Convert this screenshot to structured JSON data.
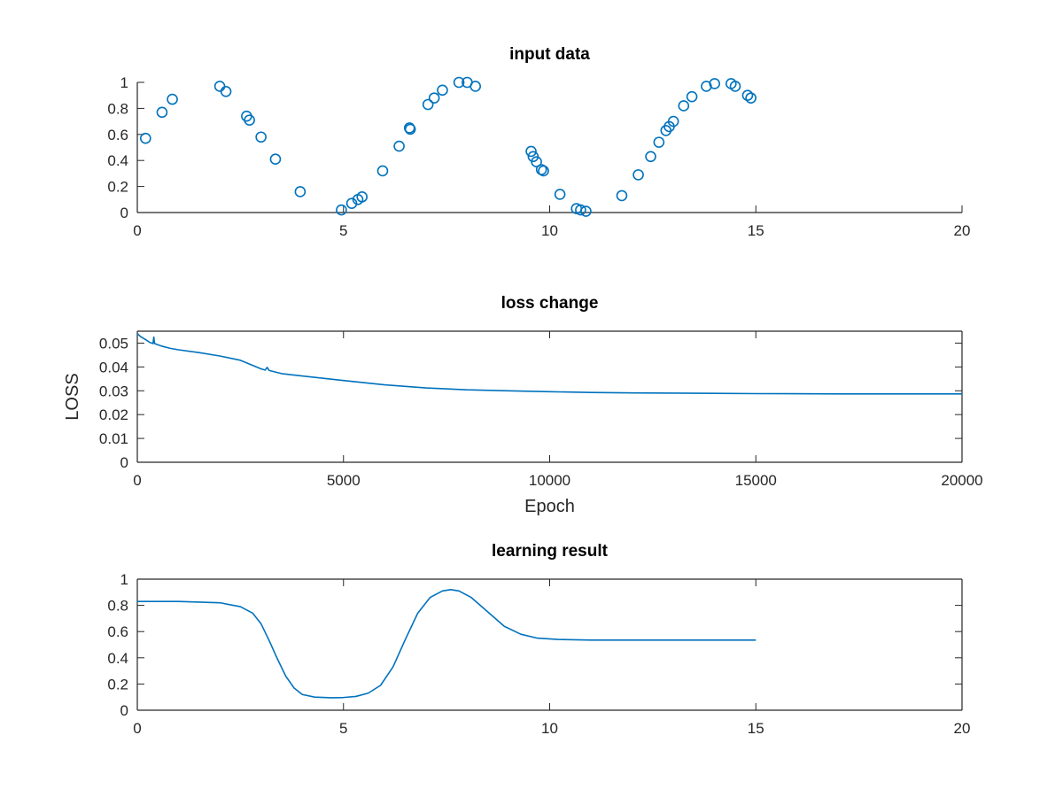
{
  "chart_data": [
    {
      "type": "scatter",
      "title": "input data",
      "xlabel": "",
      "ylabel": "",
      "xlim": [
        0,
        20
      ],
      "ylim": [
        0,
        1
      ],
      "xticks": [
        0,
        5,
        10,
        15,
        20
      ],
      "yticks": [
        0,
        0.2,
        0.4,
        0.6,
        0.8,
        1
      ],
      "marker": "circle-open",
      "series_color": "#0072BD",
      "points": [
        [
          0.2,
          0.57
        ],
        [
          0.6,
          0.77
        ],
        [
          0.85,
          0.87
        ],
        [
          2.0,
          0.97
        ],
        [
          2.15,
          0.93
        ],
        [
          2.65,
          0.74
        ],
        [
          2.72,
          0.71
        ],
        [
          3.0,
          0.58
        ],
        [
          3.35,
          0.41
        ],
        [
          3.95,
          0.16
        ],
        [
          4.95,
          0.02
        ],
        [
          5.2,
          0.07
        ],
        [
          5.35,
          0.1
        ],
        [
          5.45,
          0.12
        ],
        [
          5.95,
          0.32
        ],
        [
          6.35,
          0.51
        ],
        [
          6.6,
          0.65
        ],
        [
          6.62,
          0.64
        ],
        [
          7.05,
          0.83
        ],
        [
          7.2,
          0.88
        ],
        [
          7.4,
          0.94
        ],
        [
          7.8,
          1.0
        ],
        [
          8.0,
          1.0
        ],
        [
          8.2,
          0.97
        ],
        [
          9.55,
          0.47
        ],
        [
          9.6,
          0.43
        ],
        [
          9.68,
          0.39
        ],
        [
          9.8,
          0.33
        ],
        [
          9.85,
          0.32
        ],
        [
          10.25,
          0.14
        ],
        [
          10.65,
          0.03
        ],
        [
          10.75,
          0.02
        ],
        [
          10.88,
          0.01
        ],
        [
          11.75,
          0.13
        ],
        [
          12.15,
          0.29
        ],
        [
          12.45,
          0.43
        ],
        [
          12.65,
          0.54
        ],
        [
          12.82,
          0.63
        ],
        [
          12.9,
          0.66
        ],
        [
          13.0,
          0.7
        ],
        [
          13.25,
          0.82
        ],
        [
          13.45,
          0.89
        ],
        [
          13.8,
          0.97
        ],
        [
          14.0,
          0.99
        ],
        [
          14.4,
          0.99
        ],
        [
          14.5,
          0.97
        ],
        [
          14.8,
          0.9
        ],
        [
          14.88,
          0.88
        ]
      ]
    },
    {
      "type": "line",
      "title": "loss change",
      "xlabel": "Epoch",
      "ylabel": "LOSS",
      "xlim": [
        0,
        20000
      ],
      "ylim": [
        0,
        0.055
      ],
      "xticks": [
        0,
        5000,
        10000,
        15000,
        20000
      ],
      "yticks": [
        0,
        0.01,
        0.02,
        0.03,
        0.04,
        0.05
      ],
      "series_color": "#0072BD",
      "points": [
        [
          0,
          0.054
        ],
        [
          50,
          0.0532
        ],
        [
          100,
          0.0525
        ],
        [
          200,
          0.0515
        ],
        [
          300,
          0.0503
        ],
        [
          380,
          0.0498
        ],
        [
          400,
          0.0525
        ],
        [
          420,
          0.0498
        ],
        [
          600,
          0.0487
        ],
        [
          800,
          0.0478
        ],
        [
          1000,
          0.0472
        ],
        [
          1500,
          0.046
        ],
        [
          2000,
          0.0446
        ],
        [
          2500,
          0.0428
        ],
        [
          3000,
          0.0392
        ],
        [
          3100,
          0.0387
        ],
        [
          3150,
          0.0398
        ],
        [
          3200,
          0.0385
        ],
        [
          3500,
          0.0372
        ],
        [
          4000,
          0.0362
        ],
        [
          5000,
          0.0343
        ],
        [
          6000,
          0.0325
        ],
        [
          7000,
          0.0312
        ],
        [
          8000,
          0.0304
        ],
        [
          9000,
          0.03
        ],
        [
          10000,
          0.0296
        ],
        [
          11000,
          0.0293
        ],
        [
          12000,
          0.0291
        ],
        [
          13000,
          0.029
        ],
        [
          14000,
          0.0289
        ],
        [
          15000,
          0.0288
        ],
        [
          17000,
          0.0287
        ],
        [
          20000,
          0.0287
        ]
      ]
    },
    {
      "type": "line",
      "title": "learning result",
      "xlabel": "",
      "ylabel": "",
      "xlim": [
        0,
        20
      ],
      "ylim": [
        0,
        1
      ],
      "xticks": [
        0,
        5,
        10,
        15,
        20
      ],
      "yticks": [
        0,
        0.2,
        0.4,
        0.6,
        0.8,
        1
      ],
      "series_color": "#0072BD",
      "points": [
        [
          0,
          0.83
        ],
        [
          0.5,
          0.83
        ],
        [
          1.0,
          0.83
        ],
        [
          1.5,
          0.825
        ],
        [
          2.0,
          0.82
        ],
        [
          2.5,
          0.79
        ],
        [
          2.8,
          0.74
        ],
        [
          3.0,
          0.66
        ],
        [
          3.2,
          0.53
        ],
        [
          3.4,
          0.39
        ],
        [
          3.6,
          0.26
        ],
        [
          3.8,
          0.17
        ],
        [
          4.0,
          0.12
        ],
        [
          4.3,
          0.1
        ],
        [
          4.7,
          0.095
        ],
        [
          5.0,
          0.097
        ],
        [
          5.3,
          0.105
        ],
        [
          5.6,
          0.13
        ],
        [
          5.9,
          0.19
        ],
        [
          6.2,
          0.33
        ],
        [
          6.5,
          0.54
        ],
        [
          6.8,
          0.74
        ],
        [
          7.1,
          0.86
        ],
        [
          7.4,
          0.91
        ],
        [
          7.6,
          0.92
        ],
        [
          7.8,
          0.91
        ],
        [
          8.1,
          0.86
        ],
        [
          8.5,
          0.75
        ],
        [
          8.9,
          0.64
        ],
        [
          9.3,
          0.58
        ],
        [
          9.7,
          0.55
        ],
        [
          10.2,
          0.54
        ],
        [
          11.0,
          0.535
        ],
        [
          12.0,
          0.535
        ],
        [
          13.0,
          0.535
        ],
        [
          14.0,
          0.535
        ],
        [
          15.0,
          0.535
        ]
      ]
    }
  ]
}
